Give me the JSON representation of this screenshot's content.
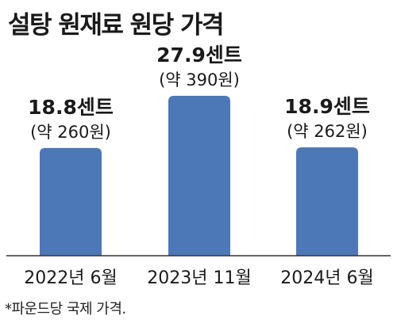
{
  "title": "설탕 원재료 원당 가격",
  "footnote": "*파운드당 국제 가격.",
  "colors": {
    "bar": "#4c78b8",
    "axis": "#333333",
    "text": "#1a1a1a"
  },
  "chart_data": {
    "type": "bar",
    "title": "설탕 원재료 원당 가격",
    "categories": [
      "2022년 6월",
      "2023년 11월",
      "2024년 6월"
    ],
    "values": [
      18.8,
      27.9,
      18.9
    ],
    "value_labels": [
      "18.8센트",
      "27.9센트",
      "18.9센트"
    ],
    "sub_labels": [
      "(약 260원)",
      "(약 390원)",
      "(약 262원)"
    ],
    "unit": "센트",
    "ylim": [
      0,
      27.9
    ],
    "grid": false,
    "legend": "none"
  }
}
